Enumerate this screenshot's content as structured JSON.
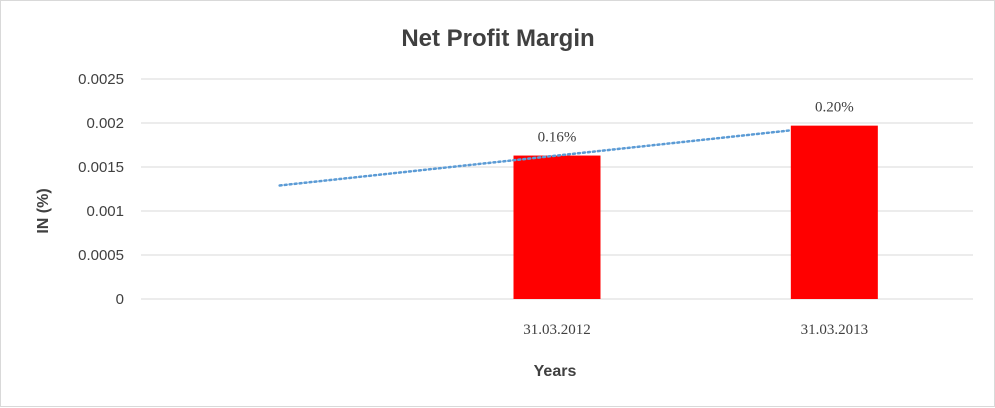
{
  "chart_data": {
    "type": "bar",
    "title": "Net Profit Margin",
    "xlabel": "Years",
    "ylabel": "IN (%)",
    "categories": [
      "",
      "31.03.2012",
      "31.03.2013"
    ],
    "values": [
      null,
      0.00163,
      0.00197
    ],
    "data_labels": [
      "",
      "0.16%",
      "0.20%"
    ],
    "ylim": [
      0,
      0.0025
    ],
    "yticks": [
      "0",
      "0.0005",
      "0.001",
      "0.0015",
      "0.002",
      "0.0025"
    ],
    "ytick_values": [
      0,
      0.0005,
      0.001,
      0.0015,
      0.002,
      0.0025
    ],
    "grid": true,
    "bar_color": "#ff0000",
    "trendline": {
      "type": "linear",
      "style": "dotted",
      "color": "#5b9bd5"
    }
  }
}
